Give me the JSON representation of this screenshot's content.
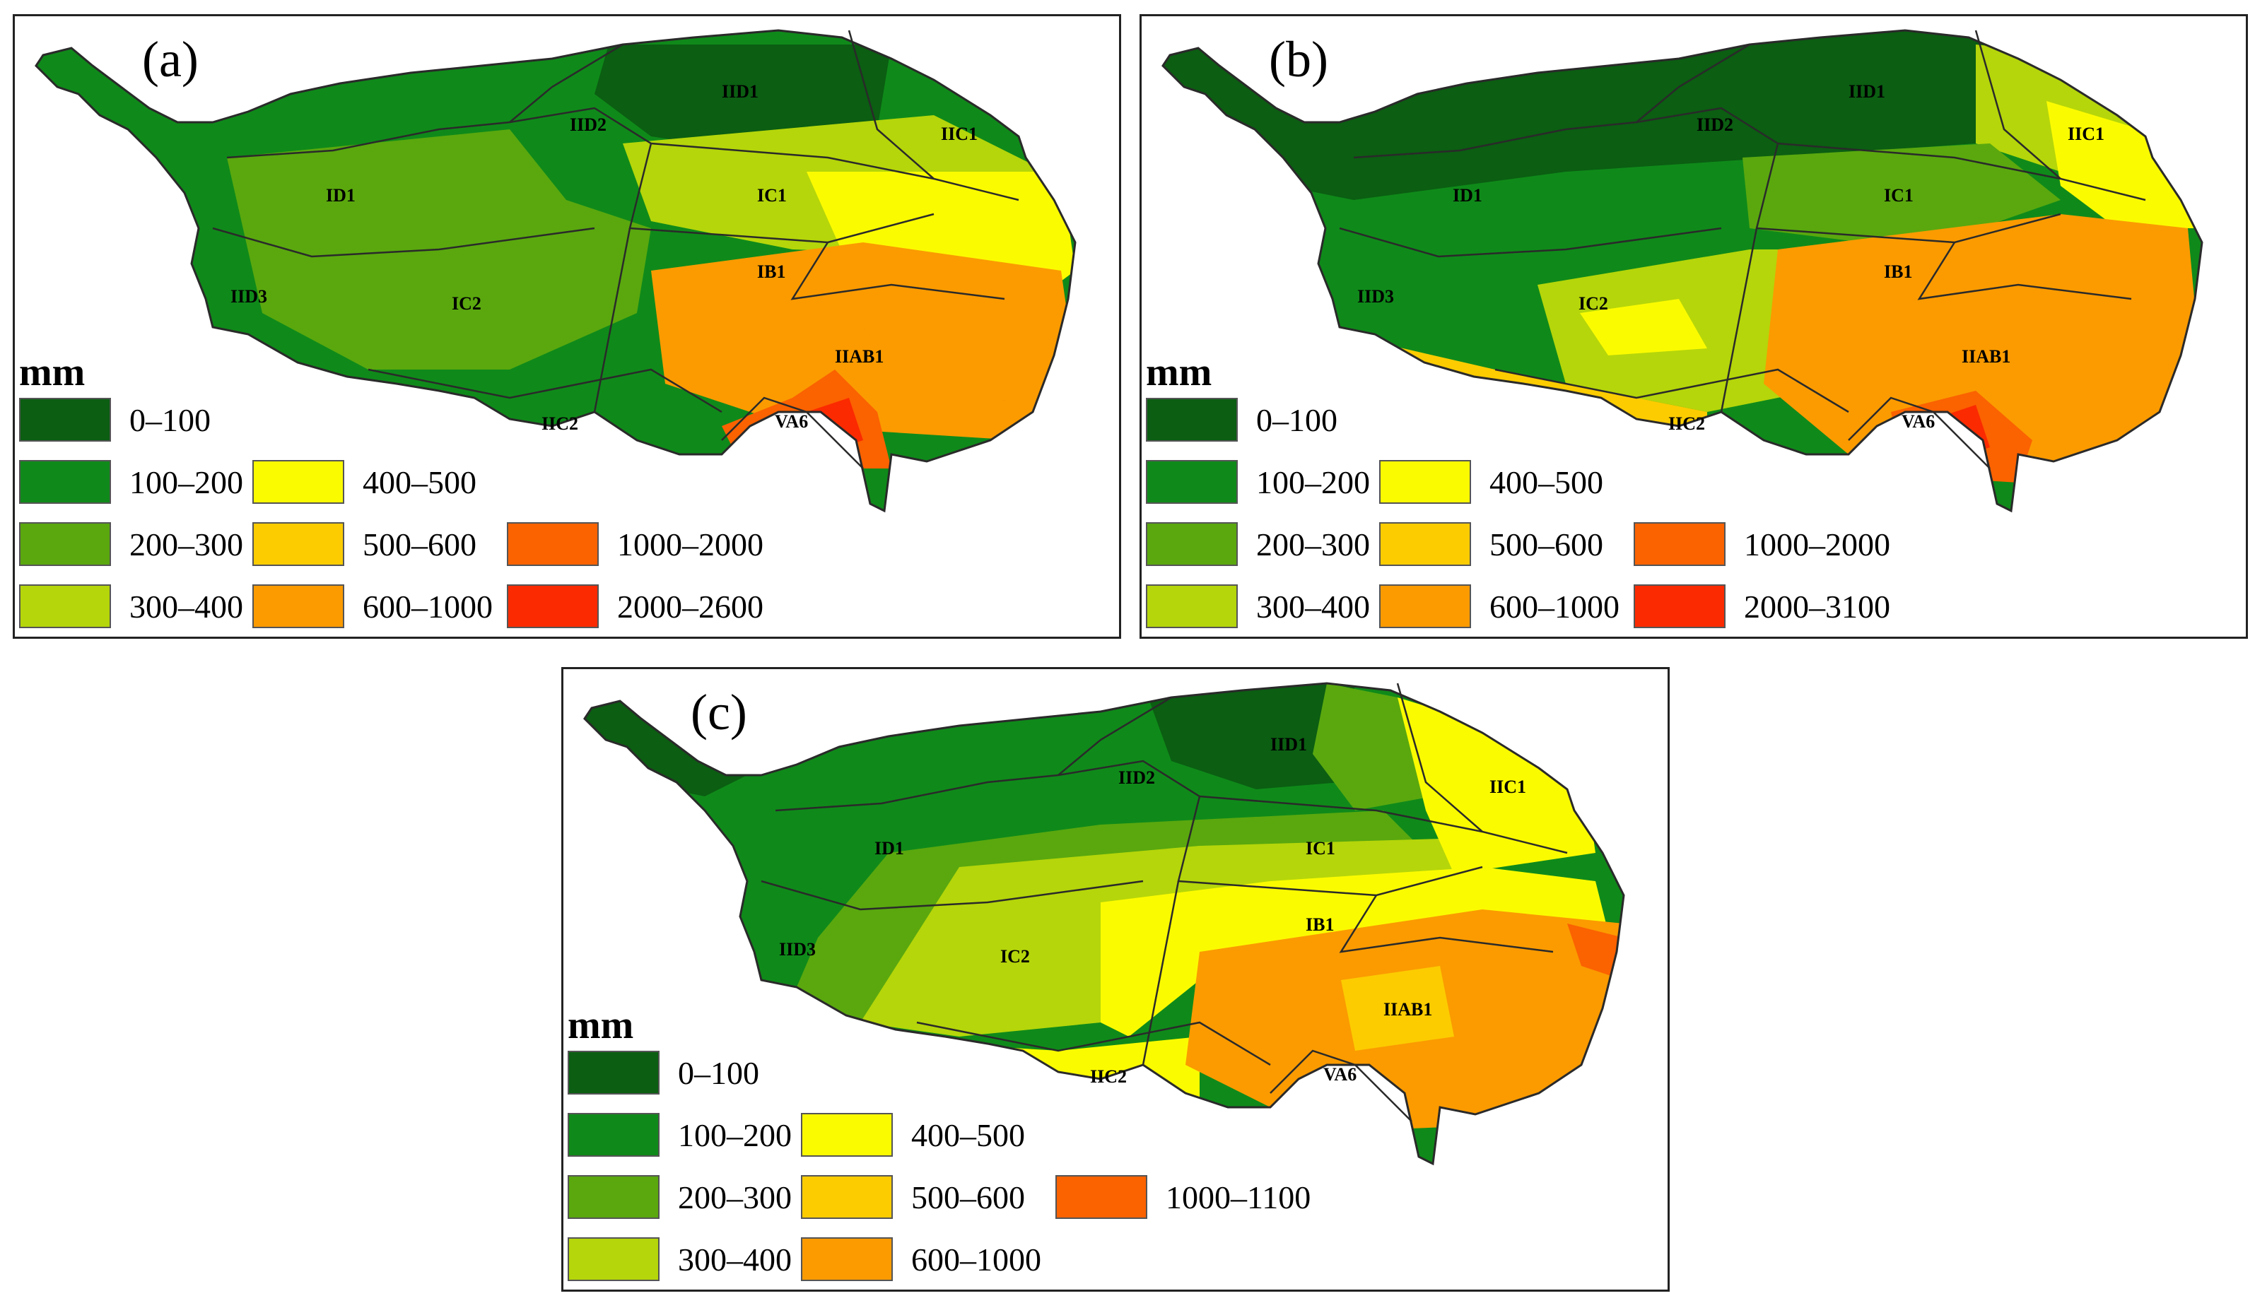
{
  "colors": {
    "c0_100": "#0b5e12",
    "c100_200": "#0f8a1a",
    "c200_300": "#5aa80e",
    "c300_400": "#b5d60a",
    "c400_500": "#fbfb00",
    "c500_600": "#fccc00",
    "c600_1000": "#fb9b00",
    "c1000_2000": "#fb6200",
    "c2000_max": "#fb2a00",
    "boundary": "#2a2a2a"
  },
  "unit": "mm",
  "panels": [
    {
      "label": "(a)",
      "regions": [
        "IID1",
        "IID2",
        "IIC1",
        "ID1",
        "IC1",
        "IB1",
        "IID3",
        "IC2",
        "IIAB1",
        "IIC2",
        "VA6"
      ],
      "legend": [
        "0–100",
        "100–200",
        "200–300",
        "300–400",
        "400–500",
        "500–600",
        "600–1000",
        "1000–2000",
        "2000–2600"
      ]
    },
    {
      "label": "(b)",
      "regions": [
        "IID1",
        "IID2",
        "IIC1",
        "ID1",
        "IC1",
        "IB1",
        "IID3",
        "IC2",
        "IIAB1",
        "IIC2",
        "VA6"
      ],
      "legend": [
        "0–100",
        "100–200",
        "200–300",
        "300–400",
        "400–500",
        "500–600",
        "600–1000",
        "1000–2000",
        "2000–3100"
      ]
    },
    {
      "label": "(c)",
      "regions": [
        "IID1",
        "IID2",
        "IIC1",
        "ID1",
        "IC1",
        "IB1",
        "IID3",
        "IC2",
        "IIAB1",
        "IIC2",
        "VA6"
      ],
      "legend": [
        "0–100",
        "100–200",
        "200–300",
        "300–400",
        "400–500",
        "500–600",
        "600–1000",
        "1000–1100"
      ]
    }
  ]
}
